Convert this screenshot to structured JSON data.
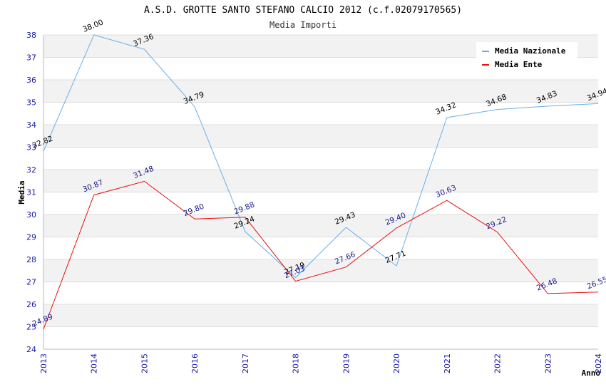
{
  "chart_data": {
    "type": "line",
    "title": "A.S.D. GROTTE SANTO STEFANO CALCIO 2012 (c.f.02079170565)",
    "subtitle": "Media Importi",
    "xlabel": "Anno",
    "ylabel": "Media",
    "ylim": [
      24,
      38
    ],
    "yticks": [
      "24",
      "25",
      "26",
      "27",
      "28",
      "29",
      "30",
      "31",
      "32",
      "33",
      "34",
      "35",
      "36",
      "37",
      "38"
    ],
    "categories": [
      "2013",
      "2014",
      "2015",
      "2016",
      "2017",
      "2018",
      "2019",
      "2020",
      "2021",
      "2022",
      "2023",
      "2024"
    ],
    "grid": true,
    "legend_position": "top-right",
    "series": [
      {
        "name": "Media Nazionale",
        "color": "#6aaee8",
        "label_color": "#000000",
        "values": [
          32.82,
          38.0,
          37.36,
          34.79,
          29.24,
          27.19,
          29.43,
          27.71,
          34.32,
          34.68,
          34.83,
          34.94
        ],
        "labels": [
          "32.82",
          "38.00",
          "37.36",
          "34.79",
          "29.24",
          "27.19",
          "29.43",
          "27.71",
          "34.32",
          "34.68",
          "34.83",
          "34.94"
        ]
      },
      {
        "name": "Media Ente",
        "color": "#e81010",
        "label_color": "#1a1a8c",
        "values": [
          24.89,
          30.87,
          31.48,
          29.8,
          29.88,
          27.03,
          27.66,
          29.4,
          30.63,
          29.22,
          26.48,
          26.55
        ],
        "labels": [
          "24.89",
          "30.87",
          "31.48",
          "29.80",
          "29.88",
          "27.03",
          "27.66",
          "29.40",
          "30.63",
          "29.22",
          "26.48",
          "26.55"
        ]
      }
    ]
  }
}
